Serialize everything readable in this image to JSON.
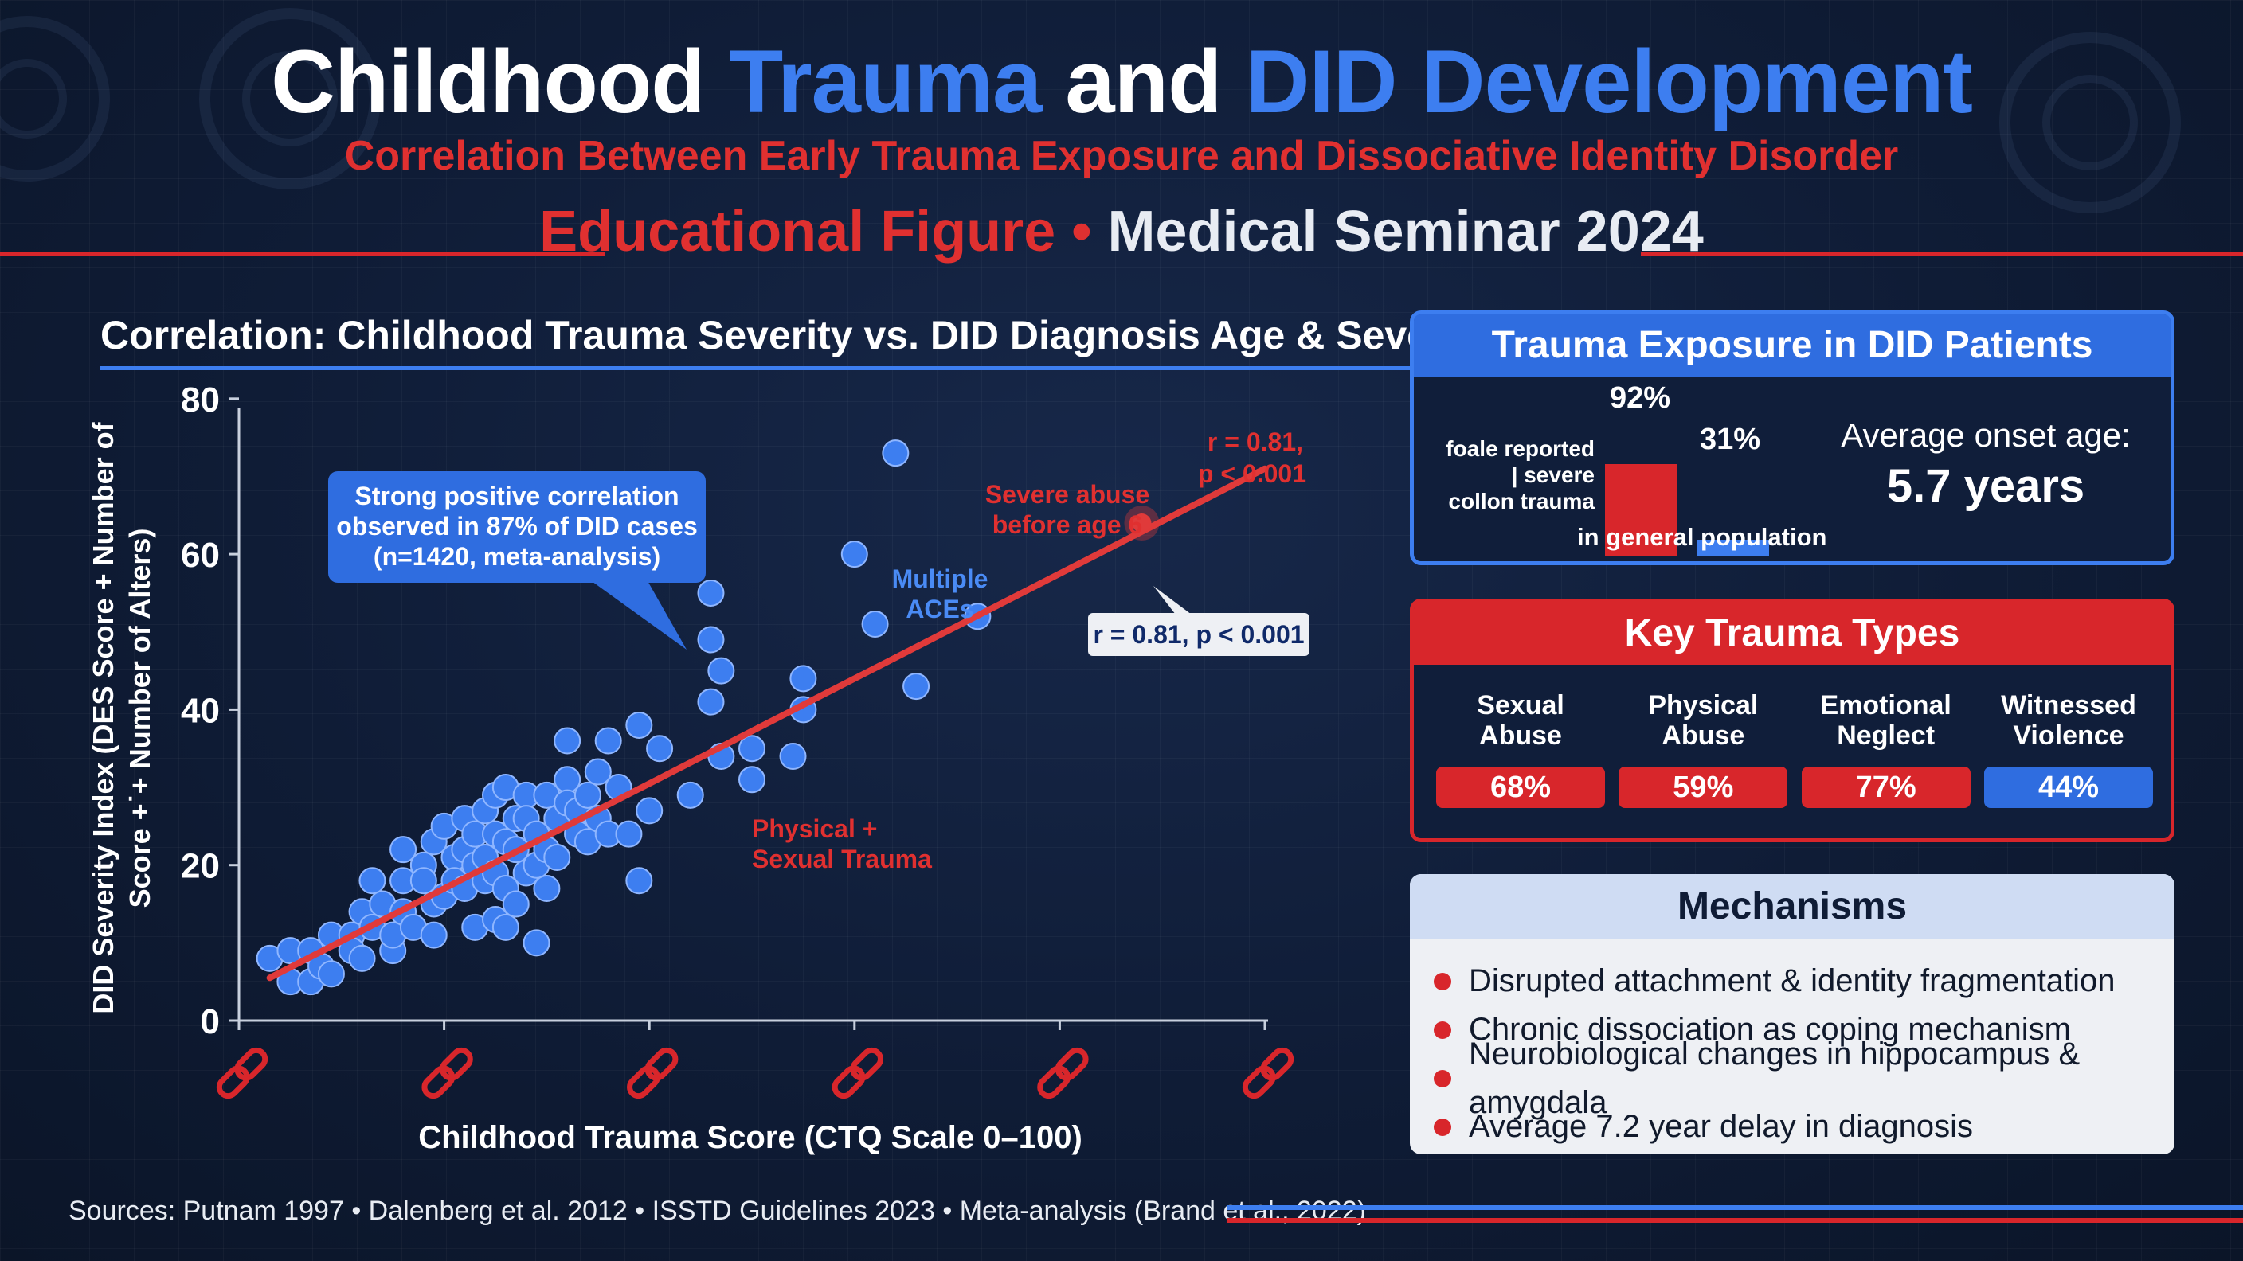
{
  "header": {
    "title_word1": "Childhood",
    "title_word2": "Trauma",
    "title_word3": "and",
    "title_word4": "DID Development",
    "subtitle": "Correlation Between Early Trauma Exposure and Dissociative Identity Disorder",
    "seminar_part1": "Educational Figure",
    "seminar_sep": " • ",
    "seminar_part2": "Medical Seminar 2024"
  },
  "chart_data": {
    "type": "scatter",
    "title": "Correlation: Childhood Trauma Severity vs. DID Diagnosis Age & Severity",
    "xlabel": "Childhood Trauma Score (CTQ Scale 0–100)",
    "ylabel_line1": "DID Severity Index (DES Score + Number of",
    "ylabel_line2": "Score +˙+ Number of Alters)",
    "xlim": [
      0,
      100
    ],
    "ylim": [
      0,
      85
    ],
    "yticks": [
      "0",
      "20",
      "40",
      "60",
      "80"
    ],
    "xticks": [
      0,
      20,
      40,
      60,
      80,
      100
    ],
    "xtick_labels": [
      "",
      "",
      "",
      "",
      "",
      ""
    ],
    "grid": false,
    "point_color": "#3d7ef0",
    "trend_color": "#e03a3a",
    "points": [
      [
        3,
        8
      ],
      [
        5,
        9
      ],
      [
        5,
        5
      ],
      [
        7,
        9
      ],
      [
        7,
        5
      ],
      [
        8,
        7
      ],
      [
        9,
        11
      ],
      [
        9,
        6
      ],
      [
        11,
        11
      ],
      [
        11,
        9
      ],
      [
        12,
        8
      ],
      [
        12,
        14
      ],
      [
        13,
        12
      ],
      [
        13,
        18
      ],
      [
        14,
        15
      ],
      [
        15,
        9
      ],
      [
        15,
        11
      ],
      [
        16,
        22
      ],
      [
        16,
        18
      ],
      [
        16,
        14
      ],
      [
        17,
        12
      ],
      [
        18,
        20
      ],
      [
        18,
        18
      ],
      [
        19,
        23
      ],
      [
        19,
        15
      ],
      [
        19,
        11
      ],
      [
        20,
        25
      ],
      [
        20,
        16
      ],
      [
        21,
        21
      ],
      [
        21,
        18
      ],
      [
        22,
        26
      ],
      [
        22,
        22
      ],
      [
        22,
        17
      ],
      [
        23,
        24
      ],
      [
        23,
        20
      ],
      [
        23,
        12
      ],
      [
        24,
        27
      ],
      [
        24,
        21
      ],
      [
        24,
        18
      ],
      [
        25,
        29
      ],
      [
        25,
        24
      ],
      [
        25,
        19
      ],
      [
        25,
        13
      ],
      [
        26,
        30
      ],
      [
        26,
        23
      ],
      [
        26,
        17
      ],
      [
        26,
        12
      ],
      [
        27,
        26
      ],
      [
        27,
        22
      ],
      [
        27,
        15
      ],
      [
        28,
        29
      ],
      [
        28,
        26
      ],
      [
        28,
        19
      ],
      [
        29,
        24
      ],
      [
        29,
        20
      ],
      [
        29,
        10
      ],
      [
        30,
        29
      ],
      [
        30,
        22
      ],
      [
        30,
        17
      ],
      [
        31,
        26
      ],
      [
        31,
        21
      ],
      [
        32,
        36
      ],
      [
        32,
        31
      ],
      [
        32,
        28
      ],
      [
        33,
        27
      ],
      [
        33,
        24
      ],
      [
        34,
        29
      ],
      [
        34,
        23
      ],
      [
        35,
        32
      ],
      [
        35,
        26
      ],
      [
        36,
        24
      ],
      [
        36,
        36
      ],
      [
        37,
        30
      ],
      [
        38,
        24
      ],
      [
        39,
        18
      ],
      [
        39,
        38
      ],
      [
        40,
        27
      ],
      [
        41,
        35
      ],
      [
        44,
        29
      ],
      [
        46,
        55
      ],
      [
        46,
        41
      ],
      [
        46,
        49
      ],
      [
        47,
        45
      ],
      [
        47,
        34
      ],
      [
        50,
        35
      ],
      [
        50,
        31
      ],
      [
        54,
        34
      ],
      [
        55,
        40
      ],
      [
        55,
        44
      ],
      [
        60,
        60
      ],
      [
        62,
        51
      ],
      [
        64,
        73
      ],
      [
        66,
        43
      ],
      [
        72,
        52
      ]
    ],
    "trend": {
      "x": [
        3,
        100
      ],
      "y": [
        5.5,
        71
      ]
    },
    "highlight_point": [
      88,
      64
    ],
    "stat_top": "r = 0.81,",
    "stat_top2": "p < 0.001",
    "stat_box": "r = 0.81, p < 0.001",
    "callout_line1": "Strong positive correlation",
    "callout_line2": "observed in 87% of DID cases",
    "callout_line3": "(n=1420, meta-analysis)",
    "ann_severe1": "Severe abuse",
    "ann_severe2": "before age 6",
    "ann_aces1": "Multiple",
    "ann_aces2": "ACEs",
    "ann_phys1": "Physical +",
    "ann_phys2": "Sexual Trauma"
  },
  "exposure": {
    "title": "Trauma Exposure in DID Patients",
    "bar1_value": 92,
    "bar1_label": "92%",
    "bar2_value": 31,
    "bar2_label": "31%",
    "side_line1": "foale reported",
    "side_line2": "| severe",
    "side_line3": "collon trauma",
    "bar2_caption": "in general population",
    "onset_label": "Average onset age:",
    "onset_value": "5.7 years",
    "bar1_color": "#d8262b",
    "bar2_color": "#3d7ef0"
  },
  "types": {
    "title": "Key Trauma Types",
    "items": [
      {
        "line1": "Sexual",
        "line2": "Abuse",
        "value": "68%",
        "color": "#d8262b"
      },
      {
        "line1": "Physical",
        "line2": "Abuse",
        "value": "59%",
        "color": "#d8262b"
      },
      {
        "line1": "Emotional",
        "line2": "Neglect",
        "value": "77%",
        "color": "#d8262b"
      },
      {
        "line1": "Witnessed",
        "line2": "Violence",
        "value": "44%",
        "color": "#3d7ef0"
      }
    ]
  },
  "mechanisms": {
    "title": "Mechanisms",
    "items": [
      "Disrupted attachment & identity fragmentation",
      "Chronic dissociation as coping mechanism",
      "Neurobiological changes in hippocampus & amygdala",
      "Average 7.2 year delay in diagnosis"
    ]
  },
  "footer": {
    "sources": "Sources: Putnam 1997 • Dalenberg et al. 2012 • ISSTD Guidelines 2023 • Meta-analysis (Brand et al., 2022)"
  }
}
